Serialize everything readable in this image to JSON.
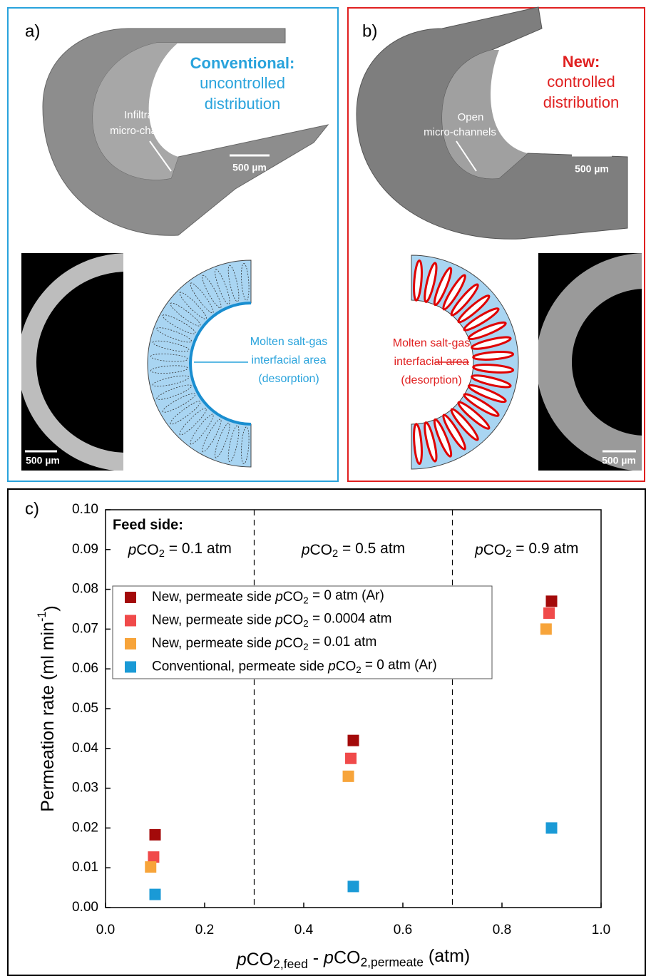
{
  "panel_a": {
    "label": "a)",
    "title": "Conventional:",
    "subtitle": [
      "uncontrolled",
      "distribution"
    ],
    "tube_note": [
      "Infiltrated",
      "micro-channels"
    ],
    "scale_bars": [
      "500 µm",
      "500 µm"
    ],
    "diagram_note": [
      "Molten salt-gas",
      "interfacial area",
      "(desorption)"
    ]
  },
  "panel_b": {
    "label": "b)",
    "title": "New:",
    "subtitle": [
      "controlled",
      "distribution"
    ],
    "tube_note": [
      "Open",
      "micro-channels"
    ],
    "scale_bars": [
      "500 µm",
      "500 µm"
    ],
    "diagram_note": [
      "Molten salt-gas",
      "interfacial area",
      "(desorption)"
    ]
  },
  "panel_c_label": "c)",
  "chart_data": {
    "type": "scatter",
    "x_label": "pCO2,feed - pCO2,permeate (atm)",
    "y_label": "Permeation rate (ml min-1)",
    "xlim": [
      0,
      1
    ],
    "ylim": [
      0,
      0.1
    ],
    "xticks": [
      {
        "value": 0,
        "label": "0.0"
      },
      0.2,
      0.4,
      0.6,
      0.8,
      {
        "value": 1,
        "label": "1.0"
      }
    ],
    "yticks": [
      {
        "value": 0,
        "label": "0.00"
      },
      0.01,
      0.02,
      0.03,
      0.04,
      0.05,
      0.06,
      0.07,
      0.08,
      0.09,
      {
        "value": 0.1,
        "label": "0.10"
      }
    ],
    "dividers": [
      0.3,
      0.7
    ],
    "feed_side_label": "Feed side:",
    "region_labels": [
      "pCO2 = 0.1 atm",
      "pCO2 = 0.5 atm",
      "pCO2 = 0.9 atm"
    ],
    "legend": "upper left",
    "series": [
      {
        "name": "New, permeate side pCO2 = 0 atm (Ar)",
        "color": "#a30a0a",
        "x": [
          0.1,
          0.5,
          0.9
        ],
        "values": [
          0.0183,
          0.042,
          0.077
        ]
      },
      {
        "name": "New, permeate side pCO2 = 0.0004 atm",
        "color": "#f04a4a",
        "x": [
          0.097,
          0.495,
          0.895
        ],
        "values": [
          0.0127,
          0.0375,
          0.074
        ]
      },
      {
        "name": "New, permeate side pCO2 = 0.01 atm",
        "color": "#f7a43a",
        "x": [
          0.091,
          0.49,
          0.889
        ],
        "values": [
          0.0102,
          0.033,
          0.07
        ]
      },
      {
        "name": "Conventional, permeate side pCO2 = 0 atm (Ar)",
        "color": "#1a9ad6",
        "x": [
          0.1,
          0.5,
          0.9
        ],
        "values": [
          0.0033,
          0.0053,
          0.02
        ]
      }
    ]
  }
}
